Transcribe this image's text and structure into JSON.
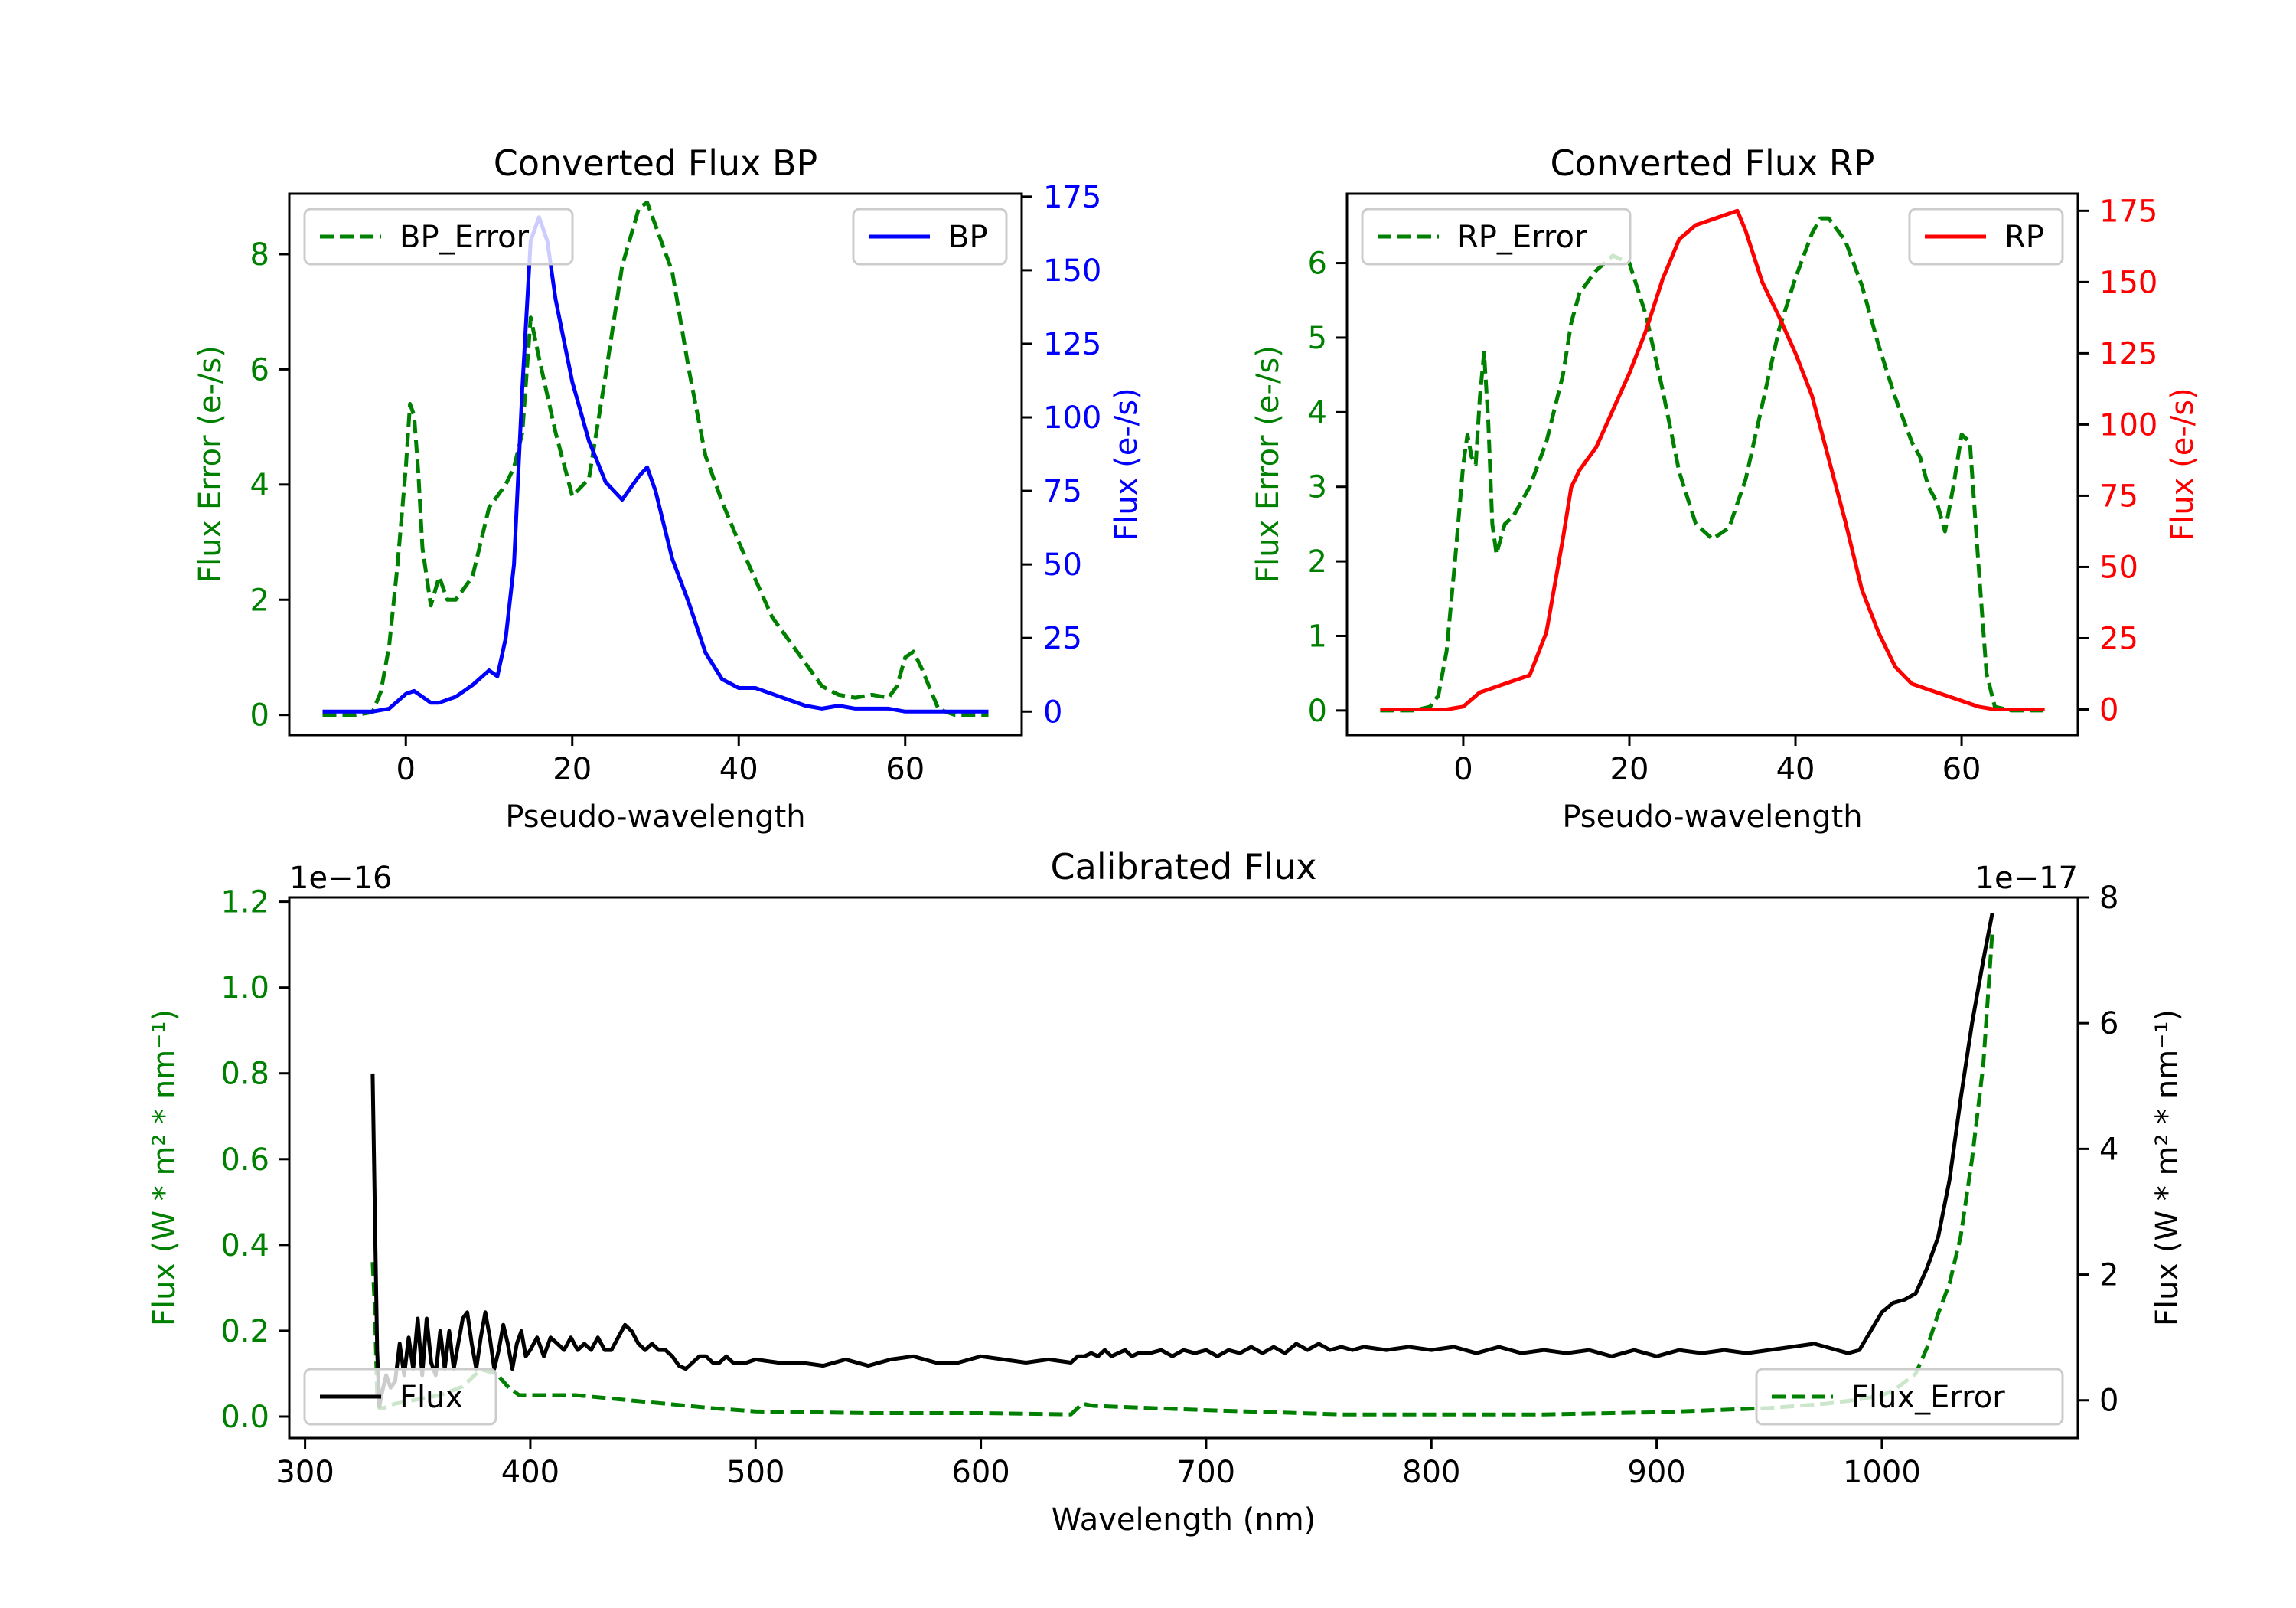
{
  "chart_data": [
    {
      "type": "line",
      "title": "Converted Flux BP",
      "xlabel": "Pseudo-wavelength",
      "xlim": [
        -14,
        74
      ],
      "xticks": [
        0,
        20,
        40,
        60
      ],
      "left_axis": {
        "label": "Flux Error (e-/s)",
        "color": "#008000",
        "ylim": [
          -0.35,
          9.05
        ],
        "ticks": [
          0,
          2,
          4,
          6,
          8
        ]
      },
      "right_axis": {
        "label": "Flux (e-/s)",
        "color": "#0000ff",
        "ylim": [
          -8,
          176
        ],
        "ticks": [
          0,
          25,
          50,
          75,
          100,
          125,
          150,
          175
        ]
      },
      "legend_left": "BP_Error",
      "legend_right": "BP",
      "series": [
        {
          "name": "BP_Error",
          "axis": "left",
          "color": "#008000",
          "dashed": true,
          "x": [
            -10,
            -6,
            -4,
            -3,
            -2,
            -1,
            0,
            0.5,
            1,
            1.5,
            2,
            3,
            4,
            5,
            6,
            8,
            10,
            12,
            13,
            14,
            15,
            16,
            18,
            20,
            22,
            24,
            26,
            28,
            29,
            30,
            32,
            34,
            36,
            38,
            40,
            44,
            48,
            50,
            52,
            54,
            56,
            58,
            59,
            60,
            61,
            62,
            64,
            66,
            68,
            70
          ],
          "y": [
            0,
            0,
            0.05,
            0.4,
            1.2,
            2.6,
            4.3,
            5.4,
            5.2,
            4.2,
            2.9,
            1.9,
            2.4,
            2.0,
            2.0,
            2.4,
            3.6,
            4.0,
            4.3,
            4.9,
            6.9,
            6.2,
            4.9,
            3.8,
            4.1,
            5.9,
            7.8,
            8.8,
            8.9,
            8.5,
            7.7,
            6.0,
            4.5,
            3.7,
            3.0,
            1.7,
            0.9,
            0.5,
            0.35,
            0.3,
            0.35,
            0.3,
            0.5,
            1.0,
            1.1,
            0.8,
            0.1,
            0,
            0,
            0
          ]
        },
        {
          "name": "BP",
          "axis": "right",
          "color": "#0000ff",
          "dashed": false,
          "x": [
            -10,
            -4,
            -2,
            0,
            1,
            2,
            3,
            4,
            6,
            8,
            10,
            11,
            12,
            13,
            14,
            15,
            16,
            17,
            18,
            20,
            22,
            24,
            26,
            28,
            29,
            30,
            32,
            34,
            36,
            38,
            40,
            42,
            44,
            46,
            48,
            50,
            52,
            54,
            56,
            58,
            60,
            62,
            64,
            66,
            70
          ],
          "y": [
            0,
            0,
            1,
            6,
            7,
            5,
            3,
            3,
            5,
            9,
            14,
            12,
            25,
            50,
            110,
            160,
            168,
            160,
            140,
            112,
            92,
            78,
            72,
            80,
            83,
            75,
            52,
            37,
            20,
            11,
            8,
            8,
            6,
            4,
            2,
            1,
            2,
            1,
            1,
            1,
            0,
            0,
            0,
            0,
            0
          ]
        }
      ]
    },
    {
      "type": "line",
      "title": "Converted Flux RP",
      "xlabel": "Pseudo-wavelength",
      "xlim": [
        -14,
        74
      ],
      "xticks": [
        0,
        20,
        40,
        60
      ],
      "left_axis": {
        "label": "Flux Error (e-/s)",
        "color": "#008000",
        "ylim": [
          -0.33,
          6.93
        ],
        "ticks": [
          0,
          1,
          2,
          3,
          4,
          5,
          6
        ]
      },
      "right_axis": {
        "label": "Flux (e-/s)",
        "color": "#ff0000",
        "ylim": [
          -9,
          181
        ],
        "ticks": [
          0,
          25,
          50,
          75,
          100,
          125,
          150,
          175
        ]
      },
      "legend_left": "RP_Error",
      "legend_right": "RP",
      "series": [
        {
          "name": "RP_Error",
          "axis": "left",
          "color": "#008000",
          "dashed": true,
          "x": [
            -10,
            -6,
            -4,
            -3,
            -2,
            -1,
            0,
            0.5,
            1,
            1.5,
            2,
            2.5,
            3,
            3.5,
            4,
            5,
            6,
            8,
            10,
            12,
            13,
            14,
            16,
            18,
            20,
            22,
            24,
            26,
            28,
            30,
            32,
            34,
            36,
            38,
            40,
            42,
            43,
            44,
            46,
            48,
            50,
            52,
            54,
            55,
            56,
            57,
            58,
            59,
            60,
            61,
            62,
            63,
            64,
            66,
            70
          ],
          "y": [
            0,
            0,
            0.05,
            0.2,
            0.8,
            2.0,
            3.3,
            3.7,
            3.4,
            3.3,
            4.2,
            4.8,
            3.9,
            2.5,
            2.1,
            2.5,
            2.6,
            3.0,
            3.6,
            4.5,
            5.2,
            5.6,
            5.9,
            6.1,
            6.0,
            5.3,
            4.3,
            3.2,
            2.5,
            2.3,
            2.45,
            3.1,
            4.1,
            5.1,
            5.8,
            6.4,
            6.6,
            6.6,
            6.3,
            5.7,
            4.9,
            4.2,
            3.6,
            3.4,
            3.0,
            2.8,
            2.4,
            3.0,
            3.7,
            3.6,
            2.0,
            0.5,
            0.05,
            0,
            0
          ]
        },
        {
          "name": "RP",
          "axis": "right",
          "color": "#ff0000",
          "dashed": false,
          "x": [
            -10,
            -4,
            -2,
            0,
            2,
            4,
            6,
            8,
            10,
            12,
            13,
            14,
            16,
            18,
            20,
            22,
            24,
            26,
            28,
            30,
            32,
            33,
            34,
            36,
            38,
            40,
            42,
            44,
            46,
            48,
            50,
            52,
            54,
            56,
            58,
            60,
            62,
            64,
            66,
            70
          ],
          "y": [
            0,
            0,
            0,
            1,
            6,
            8,
            10,
            12,
            27,
            60,
            78,
            84,
            92,
            105,
            118,
            133,
            151,
            165,
            170,
            172,
            174,
            175,
            168,
            150,
            138,
            125,
            110,
            88,
            66,
            42,
            27,
            15,
            9,
            7,
            5,
            3,
            1,
            0,
            0,
            0
          ]
        }
      ]
    },
    {
      "type": "line",
      "title": "Calibrated Flux",
      "xlabel": "Wavelength (nm)",
      "xlim": [
        293,
        1087
      ],
      "xticks": [
        300,
        400,
        500,
        600,
        700,
        800,
        900,
        1000
      ],
      "left_axis": {
        "label": "Flux (W * m² * nm⁻¹)",
        "color": "#008000",
        "ylim": [
          -0.05,
          1.21
        ],
        "ticks": [
          0.0,
          0.2,
          0.4,
          0.6,
          0.8,
          1.0,
          1.2
        ],
        "tick_labels": [
          "0.0",
          "0.2",
          "0.4",
          "0.6",
          "0.8",
          "1.0",
          "1.2"
        ],
        "offset_text": "1e−16"
      },
      "right_axis": {
        "label": "Flux (W * m² * nm⁻¹)",
        "color": "#000000",
        "ylim": [
          -0.6,
          8.0
        ],
        "ticks": [
          0,
          2,
          4,
          6,
          8
        ],
        "offset_text": "1e−17"
      },
      "legend_left": "Flux",
      "legend_right": "Flux_Error",
      "series": [
        {
          "name": "Flux_Error",
          "axis": "left",
          "color": "#008000",
          "dashed": true,
          "x": [
            330,
            331,
            332,
            333,
            335,
            340,
            345,
            350,
            360,
            370,
            378,
            385,
            390,
            395,
            400,
            420,
            440,
            460,
            480,
            500,
            550,
            600,
            640,
            645,
            650,
            700,
            760,
            800,
            850,
            900,
            950,
            975,
            990,
            1000,
            1005,
            1010,
            1015,
            1020,
            1025,
            1030,
            1035,
            1040,
            1045,
            1049
          ],
          "y": [
            0.36,
            0.25,
            0.05,
            0.02,
            0.02,
            0.03,
            0.035,
            0.04,
            0.05,
            0.07,
            0.11,
            0.1,
            0.07,
            0.05,
            0.05,
            0.05,
            0.04,
            0.03,
            0.02,
            0.012,
            0.008,
            0.008,
            0.005,
            0.03,
            0.025,
            0.015,
            0.005,
            0.005,
            0.005,
            0.01,
            0.02,
            0.03,
            0.04,
            0.05,
            0.06,
            0.08,
            0.1,
            0.16,
            0.24,
            0.31,
            0.42,
            0.6,
            0.82,
            1.13
          ]
        },
        {
          "name": "Flux",
          "axis": "right",
          "color": "#000000",
          "dashed": false,
          "x": [
            330,
            331,
            332,
            333,
            334,
            336,
            338,
            340,
            342,
            344,
            346,
            348,
            350,
            352,
            354,
            356,
            358,
            360,
            362,
            364,
            366,
            368,
            370,
            372,
            374,
            376,
            378,
            380,
            382,
            384,
            386,
            388,
            390,
            392,
            394,
            396,
            398,
            400,
            403,
            406,
            409,
            412,
            415,
            418,
            421,
            424,
            427,
            430,
            433,
            436,
            439,
            442,
            445,
            448,
            451,
            454,
            457,
            460,
            463,
            466,
            469,
            472,
            475,
            478,
            481,
            484,
            487,
            490,
            493,
            496,
            500,
            510,
            520,
            530,
            540,
            550,
            560,
            570,
            580,
            590,
            600,
            610,
            620,
            630,
            640,
            643,
            646,
            649,
            652,
            655,
            658,
            661,
            664,
            667,
            670,
            675,
            680,
            685,
            690,
            695,
            700,
            705,
            710,
            715,
            720,
            725,
            730,
            735,
            740,
            745,
            750,
            755,
            760,
            765,
            770,
            780,
            790,
            800,
            810,
            820,
            830,
            840,
            850,
            860,
            870,
            880,
            890,
            900,
            910,
            920,
            930,
            940,
            950,
            960,
            970,
            980,
            985,
            990,
            995,
            1000,
            1005,
            1010,
            1015,
            1020,
            1025,
            1030,
            1035,
            1040,
            1045,
            1049
          ],
          "y": [
            5.2,
            3.0,
            0.8,
            -0.1,
            0.1,
            0.4,
            0.2,
            0.3,
            0.9,
            0.4,
            1.0,
            0.5,
            1.3,
            0.4,
            1.3,
            0.6,
            0.4,
            1.1,
            0.5,
            1.1,
            0.5,
            0.9,
            1.3,
            1.4,
            0.9,
            0.5,
            1.0,
            1.4,
            1.0,
            0.5,
            0.8,
            1.2,
            0.9,
            0.5,
            0.9,
            1.1,
            0.7,
            0.8,
            1.0,
            0.7,
            1.0,
            0.9,
            0.8,
            1.0,
            0.8,
            0.9,
            0.8,
            1.0,
            0.8,
            0.8,
            1.0,
            1.2,
            1.1,
            0.9,
            0.8,
            0.9,
            0.8,
            0.8,
            0.7,
            0.55,
            0.5,
            0.6,
            0.7,
            0.7,
            0.6,
            0.6,
            0.7,
            0.6,
            0.6,
            0.6,
            0.65,
            0.6,
            0.6,
            0.55,
            0.65,
            0.55,
            0.65,
            0.7,
            0.6,
            0.6,
            0.7,
            0.65,
            0.6,
            0.65,
            0.6,
            0.7,
            0.7,
            0.75,
            0.7,
            0.8,
            0.7,
            0.75,
            0.8,
            0.7,
            0.75,
            0.75,
            0.8,
            0.7,
            0.8,
            0.75,
            0.8,
            0.7,
            0.8,
            0.75,
            0.85,
            0.75,
            0.85,
            0.75,
            0.9,
            0.8,
            0.9,
            0.8,
            0.85,
            0.8,
            0.85,
            0.8,
            0.85,
            0.8,
            0.85,
            0.75,
            0.85,
            0.75,
            0.8,
            0.75,
            0.8,
            0.7,
            0.8,
            0.7,
            0.8,
            0.75,
            0.8,
            0.75,
            0.8,
            0.85,
            0.9,
            0.8,
            0.75,
            0.8,
            1.1,
            1.4,
            1.55,
            1.6,
            1.7,
            2.1,
            2.6,
            3.5,
            4.8,
            6.0,
            7.0,
            7.75
          ]
        }
      ]
    }
  ]
}
